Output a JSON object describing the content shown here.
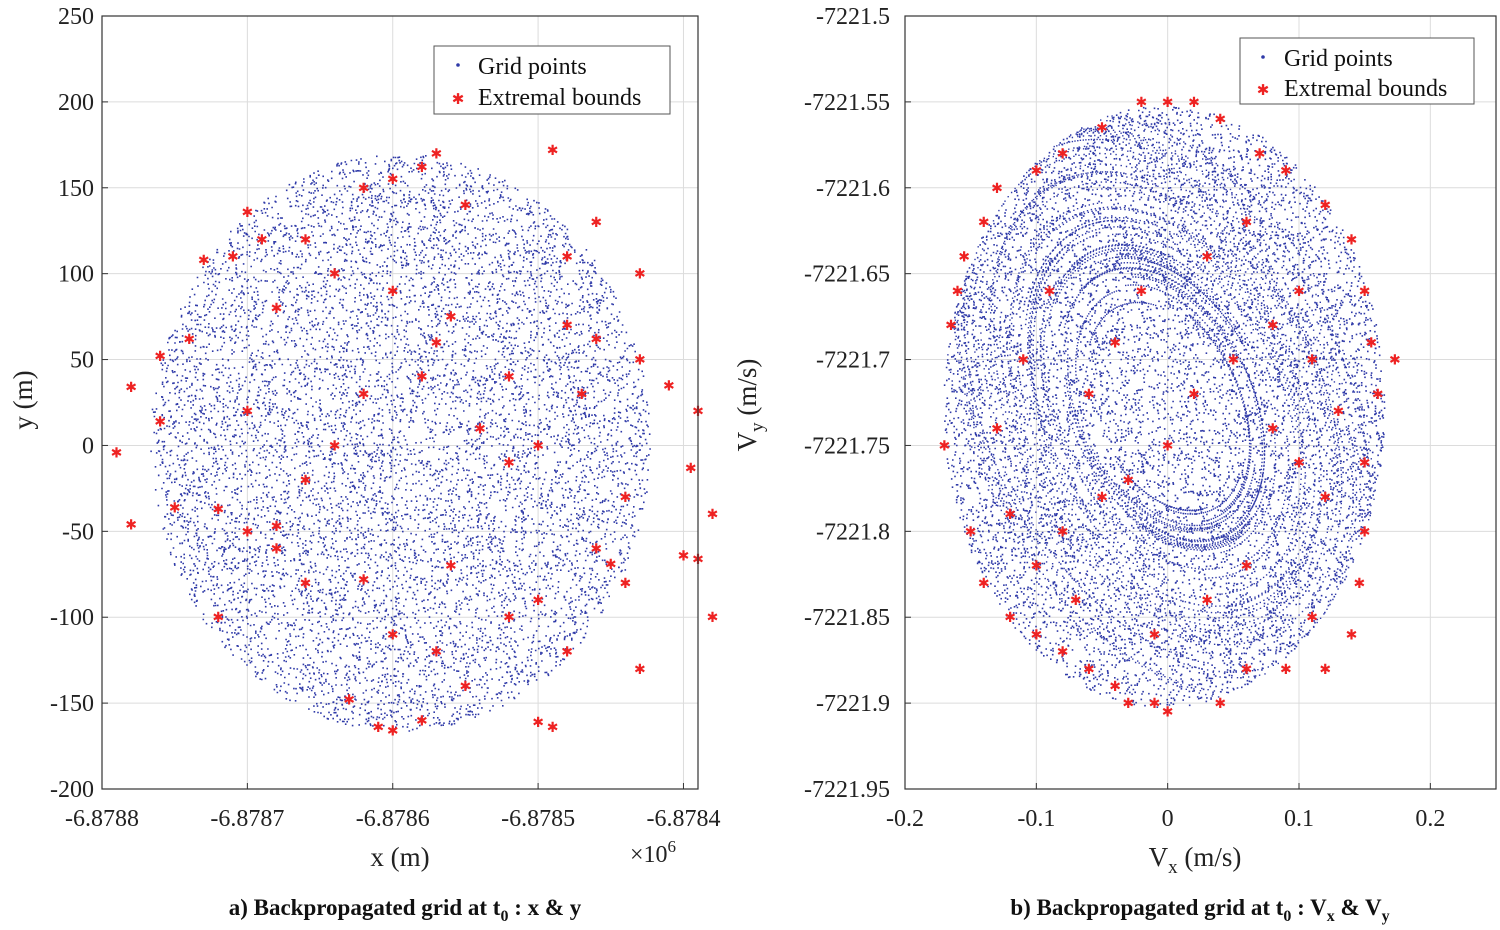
{
  "colors": {
    "grid_points": "#2f3aa8",
    "extremal_bounds": "#ee2222",
    "gridline": "#dcdcdc",
    "axis": "#333333"
  },
  "chart_data": [
    {
      "type": "scatter",
      "panel": "a",
      "caption": {
        "prefix": "a) Backpropagated grid at t",
        "sub": "0",
        "suffix": " : x & y"
      },
      "xlabel": {
        "main": "x (m)",
        "sub": ""
      },
      "ylabel": {
        "main": "y (m)",
        "sub": ""
      },
      "x_multiplier": {
        "base": "×10",
        "exp": "6"
      },
      "xlim": [
        -6.8788,
        -6.87839
      ],
      "ylim": [
        -200,
        250
      ],
      "xticks": [
        -6.8788,
        -6.8787,
        -6.8786,
        -6.8785,
        -6.8784
      ],
      "xtick_labels": [
        "-6.8788",
        "-6.8787",
        "-6.8786",
        "-6.8785",
        "-6.8784"
      ],
      "yticks": [
        -200,
        -150,
        -100,
        -50,
        0,
        50,
        100,
        150,
        200,
        250
      ],
      "ytick_labels": [
        "-200",
        "-150",
        "-100",
        "-50",
        "0",
        "50",
        "100",
        "150",
        "200",
        "250"
      ],
      "grid": true,
      "legend": {
        "position": "top-right",
        "entries": [
          "Grid points",
          "Extremal bounds"
        ]
      },
      "series": [
        {
          "name": "Grid points",
          "marker": "dot",
          "cloud": {
            "center": [
              -6.878595,
              2
            ],
            "semi_axes": [
              0.000172,
              168
            ],
            "count": 9000
          }
        },
        {
          "name": "Extremal bounds",
          "marker": "star",
          "points": [
            [
              -6.87868,
              -47
            ],
            [
              -6.87863,
              -148
            ],
            [
              -6.87861,
              -164
            ],
            [
              -6.8786,
              -166
            ],
            [
              -6.87858,
              -160
            ],
            [
              -6.8785,
              -161
            ],
            [
              -6.87849,
              -164
            ],
            [
              -6.87843,
              -130
            ],
            [
              -6.87838,
              -100
            ],
            [
              -6.87844,
              -80
            ],
            [
              -6.87845,
              -69
            ],
            [
              -6.8784,
              -64
            ],
            [
              -6.87839,
              -66
            ],
            [
              -6.87838,
              -40
            ],
            [
              -6.878395,
              -13
            ],
            [
              -6.87839,
              20
            ],
            [
              -6.87841,
              35
            ],
            [
              -6.87843,
              50
            ],
            [
              -6.87846,
              62
            ],
            [
              -6.87848,
              70
            ],
            [
              -6.87847,
              30
            ],
            [
              -6.87852,
              40
            ],
            [
              -6.87855,
              140
            ],
            [
              -6.87849,
              172
            ],
            [
              -6.87857,
              170
            ],
            [
              -6.87858,
              162
            ],
            [
              -6.8786,
              155
            ],
            [
              -6.87862,
              150
            ],
            [
              -6.8787,
              136
            ],
            [
              -6.87869,
              120
            ],
            [
              -6.87871,
              110
            ],
            [
              -6.87873,
              108
            ],
            [
              -6.87874,
              62
            ],
            [
              -6.87876,
              52
            ],
            [
              -6.87878,
              34
            ],
            [
              -6.87876,
              14
            ],
            [
              -6.87879,
              -4
            ],
            [
              -6.87878,
              -46
            ],
            [
              -6.87875,
              -36
            ],
            [
              -6.87872,
              -37
            ],
            [
              -6.8787,
              -50
            ],
            [
              -6.87868,
              -60
            ],
            [
              -6.87866,
              -80
            ],
            [
              -6.87862,
              -78
            ],
            [
              -6.8786,
              -110
            ],
            [
              -6.87857,
              -120
            ],
            [
              -6.87855,
              -140
            ],
            [
              -6.87852,
              -100
            ],
            [
              -6.8785,
              -90
            ],
            [
              -6.87848,
              -120
            ],
            [
              -6.87846,
              -60
            ],
            [
              -6.87844,
              -30
            ],
            [
              -6.87858,
              40
            ],
            [
              -6.87857,
              60
            ],
            [
              -6.87856,
              75
            ],
            [
              -6.87862,
              30
            ],
            [
              -6.87864,
              0
            ],
            [
              -6.87866,
              -20
            ],
            [
              -6.8785,
              0
            ],
            [
              -6.87852,
              -10
            ],
            [
              -6.87854,
              10
            ],
            [
              -6.8786,
              90
            ],
            [
              -6.87864,
              100
            ],
            [
              -6.87866,
              120
            ],
            [
              -6.87868,
              80
            ],
            [
              -6.8787,
              20
            ],
            [
              -6.87872,
              -100
            ],
            [
              -6.87856,
              -70
            ],
            [
              -6.87848,
              110
            ],
            [
              -6.87846,
              130
            ],
            [
              -6.87843,
              100
            ]
          ]
        }
      ]
    },
    {
      "type": "scatter",
      "panel": "b",
      "caption": {
        "prefix": "b) Backpropagated grid at t",
        "sub": "0",
        "suffix": " : V",
        "sub2": "x",
        "mid": " & V",
        "sub3": "y"
      },
      "xlabel": {
        "main": "V",
        "sub": "x",
        "rest": " (m/s)"
      },
      "ylabel": {
        "main": "V",
        "sub": "y",
        "rest": " (m/s)"
      },
      "xlim": [
        -0.2,
        0.25
      ],
      "ylim": [
        -7221.95,
        -7221.5
      ],
      "xticks": [
        -0.2,
        -0.1,
        0,
        0.1,
        0.2
      ],
      "xtick_labels": [
        "-0.2",
        "-0.1",
        "0",
        "0.1",
        "0.2"
      ],
      "yticks": [
        -7221.95,
        -7221.9,
        -7221.85,
        -7221.8,
        -7221.75,
        -7221.7,
        -7221.65,
        -7221.6,
        -7221.55,
        -7221.5
      ],
      "ytick_labels": [
        "-7221.95",
        "-7221.9",
        "-7221.85",
        "-7221.8",
        "-7221.75",
        "-7221.7",
        "-7221.65",
        "-7221.6",
        "-7221.55",
        "-7221.5"
      ],
      "grid": true,
      "legend": {
        "position": "top-right",
        "entries": [
          "Grid points",
          "Extremal bounds"
        ]
      },
      "series": [
        {
          "name": "Grid points",
          "marker": "dot",
          "cloud": {
            "center": [
              -0.003,
              -7221.727
            ],
            "semi_axes": [
              0.168,
              0.175
            ],
            "count": 9000
          }
        },
        {
          "name": "Extremal bounds",
          "marker": "star",
          "points": [
            [
              0.173,
              -7221.7
            ],
            [
              0.16,
              -7221.72
            ],
            [
              0.155,
              -7221.69
            ],
            [
              0.15,
              -7221.76
            ],
            [
              0.15,
              -7221.8
            ],
            [
              0.146,
              -7221.83
            ],
            [
              0.14,
              -7221.86
            ],
            [
              0.12,
              -7221.88
            ],
            [
              0.11,
              -7221.85
            ],
            [
              0.09,
              -7221.88
            ],
            [
              0.06,
              -7221.88
            ],
            [
              0.04,
              -7221.9
            ],
            [
              0.0,
              -7221.905
            ],
            [
              -0.01,
              -7221.9
            ],
            [
              -0.03,
              -7221.9
            ],
            [
              -0.04,
              -7221.89
            ],
            [
              -0.06,
              -7221.88
            ],
            [
              -0.08,
              -7221.87
            ],
            [
              -0.1,
              -7221.86
            ],
            [
              -0.12,
              -7221.85
            ],
            [
              -0.14,
              -7221.83
            ],
            [
              -0.15,
              -7221.8
            ],
            [
              -0.17,
              -7221.75
            ],
            [
              -0.165,
              -7221.68
            ],
            [
              -0.16,
              -7221.66
            ],
            [
              -0.155,
              -7221.64
            ],
            [
              -0.14,
              -7221.62
            ],
            [
              -0.13,
              -7221.6
            ],
            [
              -0.1,
              -7221.59
            ],
            [
              -0.08,
              -7221.58
            ],
            [
              -0.05,
              -7221.565
            ],
            [
              -0.02,
              -7221.55
            ],
            [
              0.0,
              -7221.55
            ],
            [
              0.02,
              -7221.55
            ],
            [
              0.04,
              -7221.56
            ],
            [
              0.07,
              -7221.58
            ],
            [
              0.09,
              -7221.59
            ],
            [
              0.12,
              -7221.61
            ],
            [
              0.14,
              -7221.63
            ],
            [
              0.15,
              -7221.66
            ],
            [
              0.1,
              -7221.66
            ],
            [
              0.08,
              -7221.68
            ],
            [
              0.05,
              -7221.7
            ],
            [
              0.02,
              -7221.72
            ],
            [
              0.0,
              -7221.75
            ],
            [
              -0.03,
              -7221.77
            ],
            [
              -0.05,
              -7221.78
            ],
            [
              -0.08,
              -7221.8
            ],
            [
              -0.1,
              -7221.82
            ],
            [
              -0.12,
              -7221.79
            ],
            [
              -0.06,
              -7221.72
            ],
            [
              -0.04,
              -7221.69
            ],
            [
              -0.02,
              -7221.66
            ],
            [
              0.03,
              -7221.64
            ],
            [
              0.06,
              -7221.62
            ],
            [
              0.08,
              -7221.74
            ],
            [
              0.1,
              -7221.76
            ],
            [
              0.12,
              -7221.78
            ],
            [
              0.06,
              -7221.82
            ],
            [
              0.03,
              -7221.84
            ],
            [
              -0.01,
              -7221.86
            ],
            [
              -0.07,
              -7221.84
            ],
            [
              -0.11,
              -7221.7
            ],
            [
              -0.09,
              -7221.66
            ],
            [
              0.11,
              -7221.7
            ],
            [
              0.13,
              -7221.73
            ],
            [
              -0.13,
              -7221.74
            ]
          ]
        }
      ]
    }
  ]
}
